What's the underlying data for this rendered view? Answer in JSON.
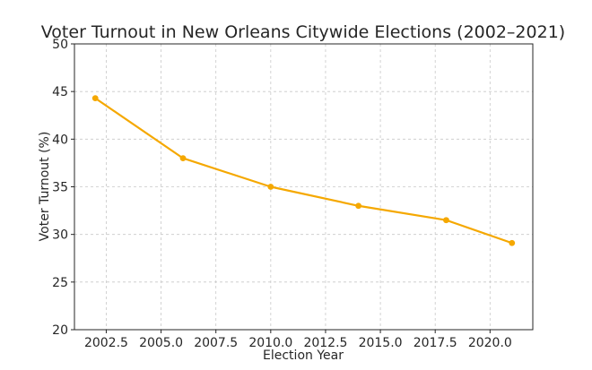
{
  "chart_data": {
    "type": "line",
    "title": "Voter Turnout in New Orleans Citywide Elections (2002–2021)",
    "xlabel": "Election Year",
    "ylabel": "Voter Turnout (%)",
    "xlim": [
      2001.05,
      2021.95
    ],
    "ylim": [
      20,
      50
    ],
    "xticks": [
      2002.5,
      2005.0,
      2007.5,
      2010.0,
      2012.5,
      2015.0,
      2017.5,
      2020.0
    ],
    "xtick_labels": [
      "2002.5",
      "2005.0",
      "2007.5",
      "2010.0",
      "2012.5",
      "2015.0",
      "2017.5",
      "2020.0"
    ],
    "yticks": [
      20,
      25,
      30,
      35,
      40,
      45,
      50
    ],
    "ytick_labels": [
      "20",
      "25",
      "30",
      "35",
      "40",
      "45",
      "50"
    ],
    "grid": true,
    "series": [
      {
        "color": "#f5a800",
        "x": [
          2002,
          2006,
          2010,
          2014,
          2018,
          2021
        ],
        "y": [
          44.3,
          38.0,
          35.0,
          33.0,
          31.5,
          29.1
        ]
      }
    ]
  }
}
